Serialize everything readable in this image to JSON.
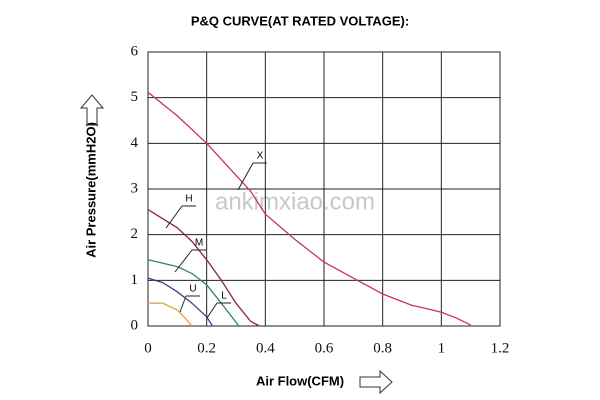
{
  "chart_data": {
    "type": "line",
    "title": "P&Q CURVE(AT RATED VOLTAGE):",
    "x_label": "Air Flow(CFM)",
    "y_label": "Air Pressure(mmH2O)",
    "watermark": "ankimxiao.com",
    "xlim": [
      0,
      1.2
    ],
    "xticks": [
      0,
      0.2,
      0.4,
      0.6,
      0.8,
      1,
      1.2
    ],
    "ylim": [
      0,
      6
    ],
    "yticks": [
      0,
      1,
      2,
      3,
      4,
      5,
      6
    ],
    "grid": true,
    "series": [
      {
        "name": "X",
        "color": "#c8325a",
        "x": [
          0,
          0.1,
          0.2,
          0.3,
          0.35,
          0.4,
          0.5,
          0.6,
          0.7,
          0.8,
          0.9,
          0.95,
          1.0,
          1.05,
          1.1
        ],
        "values": [
          5.12,
          4.6,
          4.0,
          3.3,
          2.95,
          2.45,
          1.9,
          1.4,
          1.05,
          0.7,
          0.45,
          0.38,
          0.3,
          0.18,
          0.02
        ]
      },
      {
        "name": "H",
        "color": "#8b2252",
        "x": [
          0,
          0.1,
          0.15,
          0.2,
          0.25,
          0.3,
          0.35,
          0.38
        ],
        "values": [
          2.55,
          2.15,
          1.85,
          1.45,
          1.0,
          0.5,
          0.1,
          0
        ]
      },
      {
        "name": "M",
        "color": "#2e8b57",
        "x": [
          0,
          0.1,
          0.15,
          0.2,
          0.25,
          0.28,
          0.31
        ],
        "values": [
          1.45,
          1.3,
          1.15,
          0.9,
          0.5,
          0.25,
          0
        ]
      },
      {
        "name": "U",
        "color": "#e6a23c",
        "x": [
          0,
          0.05,
          0.1,
          0.13,
          0.15
        ],
        "values": [
          0.5,
          0.5,
          0.35,
          0.15,
          0
        ]
      },
      {
        "name": "L",
        "color": "#4b3a8a",
        "x": [
          0,
          0.05,
          0.1,
          0.15,
          0.2,
          0.22
        ],
        "values": [
          1.05,
          0.95,
          0.75,
          0.5,
          0.2,
          0
        ]
      }
    ]
  }
}
